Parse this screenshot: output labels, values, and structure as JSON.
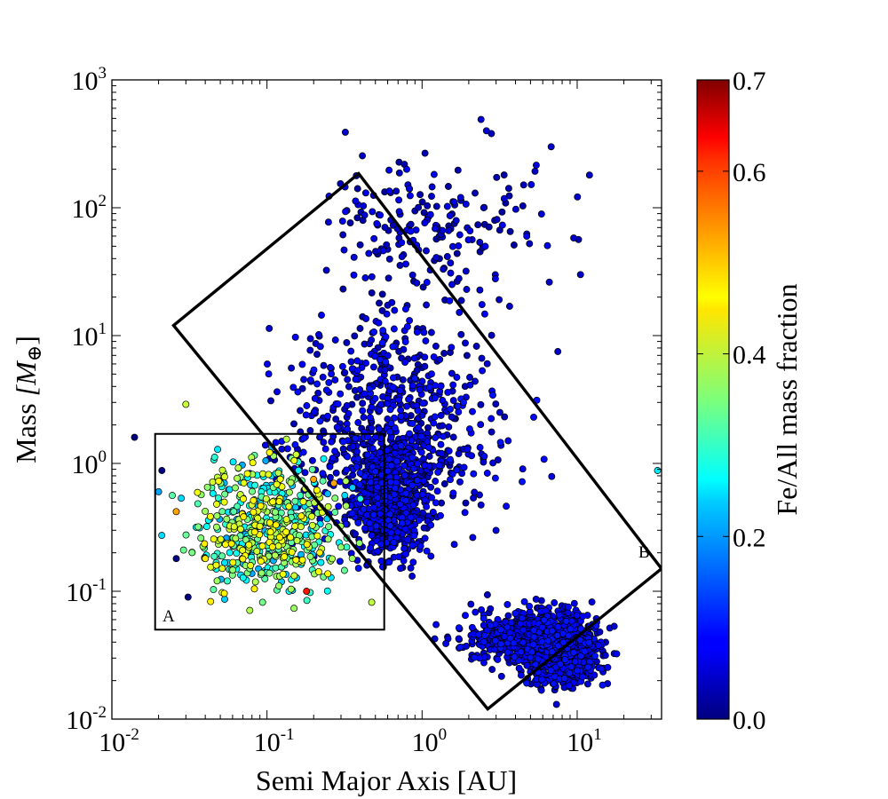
{
  "chart_data": {
    "type": "scatter",
    "xlabel": "Semi Major Axis [AU]",
    "ylabel_text": "Mass ",
    "ylabel_math": "[M",
    "ylabel_sub": "⊕",
    "ylabel_close": "]",
    "xscale": "log",
    "yscale": "log",
    "xlim": [
      0.01,
      35
    ],
    "ylim": [
      0.01,
      1000
    ],
    "x_ticks": [
      {
        "base": "10",
        "exp": "-2",
        "value": 0.01
      },
      {
        "base": "10",
        "exp": "-1",
        "value": 0.1
      },
      {
        "base": "10",
        "exp": "0",
        "value": 1
      },
      {
        "base": "10",
        "exp": "1",
        "value": 10
      }
    ],
    "y_ticks": [
      {
        "base": "10",
        "exp": "-2",
        "value": 0.01
      },
      {
        "base": "10",
        "exp": "-1",
        "value": 0.1
      },
      {
        "base": "10",
        "exp": "0",
        "value": 1
      },
      {
        "base": "10",
        "exp": "1",
        "value": 10
      },
      {
        "base": "10",
        "exp": "2",
        "value": 100
      },
      {
        "base": "10",
        "exp": "3",
        "value": 1000
      }
    ],
    "colorbar": {
      "label": "Fe/All mass fraction",
      "range": [
        0.0,
        0.7
      ],
      "colormap": "jet",
      "ticks": [
        {
          "label": "0.0",
          "value": 0.0
        },
        {
          "label": "0.2",
          "value": 0.2
        },
        {
          "label": "0.4",
          "value": 0.4
        },
        {
          "label": "0.6",
          "value": 0.6
        },
        {
          "label": "0.7",
          "value": 0.7
        }
      ]
    },
    "regions": [
      {
        "name": "A",
        "shape": "rectangle",
        "corners": [
          [
            0.019,
            0.05
          ],
          [
            0.57,
            0.05
          ],
          [
            0.57,
            1.7
          ],
          [
            0.019,
            1.7
          ]
        ]
      },
      {
        "name": "B",
        "shape": "rotated-rectangle",
        "corners": [
          [
            0.025,
            12
          ],
          [
            0.39,
            185
          ],
          [
            35,
            0.15
          ],
          [
            2.65,
            0.012
          ]
        ]
      }
    ],
    "point_groups": [
      {
        "x_range": [
          0.02,
          0.55
        ],
        "y_range": [
          0.05,
          2.0
        ],
        "fe_range": [
          0.2,
          0.45
        ],
        "count": 550
      },
      {
        "x_range": [
          0.25,
          1.5
        ],
        "y_range": [
          0.1,
          3.0
        ],
        "fe_range": [
          0.04,
          0.1
        ],
        "count": 600
      },
      {
        "x_range": [
          3,
          20
        ],
        "y_range": [
          0.013,
          0.1
        ],
        "fe_range": [
          0.04,
          0.1
        ],
        "count": 800
      },
      {
        "x_range": [
          1,
          20
        ],
        "y_range": [
          0.02,
          0.1
        ],
        "fe_range": [
          0.04,
          0.1
        ],
        "count": 350
      },
      {
        "x_range": [
          0.05,
          8
        ],
        "y_range": [
          0.1,
          40
        ],
        "fe_range": [
          0.03,
          0.1
        ],
        "count": 700
      },
      {
        "x_range": [
          0.1,
          15
        ],
        "y_range": [
          10,
          500
        ],
        "fe_range": [
          0.02,
          0.08
        ],
        "count": 200
      }
    ],
    "points_explicit": [
      {
        "x": 0.014,
        "y": 1.6,
        "fe": 0.0
      },
      {
        "x": 0.32,
        "y": 390,
        "fe": 0.05
      },
      {
        "x": 2.4,
        "y": 490,
        "fe": 0.06
      },
      {
        "x": 2.6,
        "y": 400,
        "fe": 0.06
      },
      {
        "x": 2.8,
        "y": 380,
        "fe": 0.05
      },
      {
        "x": 6.8,
        "y": 300,
        "fe": 0.05
      },
      {
        "x": 12,
        "y": 180,
        "fe": 0.05
      },
      {
        "x": 9.5,
        "y": 58,
        "fe": 0.05
      },
      {
        "x": 10.5,
        "y": 30,
        "fe": 0.05
      },
      {
        "x": 7.5,
        "y": 7.5,
        "fe": 0.05
      },
      {
        "x": 33,
        "y": 0.88,
        "fe": 0.25
      },
      {
        "x": 0.02,
        "y": 0.6,
        "fe": 0.2
      },
      {
        "x": 0.021,
        "y": 0.88,
        "fe": 0.0
      },
      {
        "x": 0.026,
        "y": 0.42,
        "fe": 0.5
      },
      {
        "x": 0.026,
        "y": 0.18,
        "fe": 0.0
      },
      {
        "x": 0.03,
        "y": 2.9,
        "fe": 0.4
      },
      {
        "x": 0.04,
        "y": 0.18,
        "fe": 0.45
      },
      {
        "x": 0.031,
        "y": 0.09,
        "fe": 0.0
      },
      {
        "x": 0.18,
        "y": 0.1,
        "fe": 0.6
      },
      {
        "x": 0.2,
        "y": 0.75,
        "fe": 0.5
      },
      {
        "x": 0.27,
        "y": 0.7,
        "fe": 0.5
      }
    ]
  }
}
